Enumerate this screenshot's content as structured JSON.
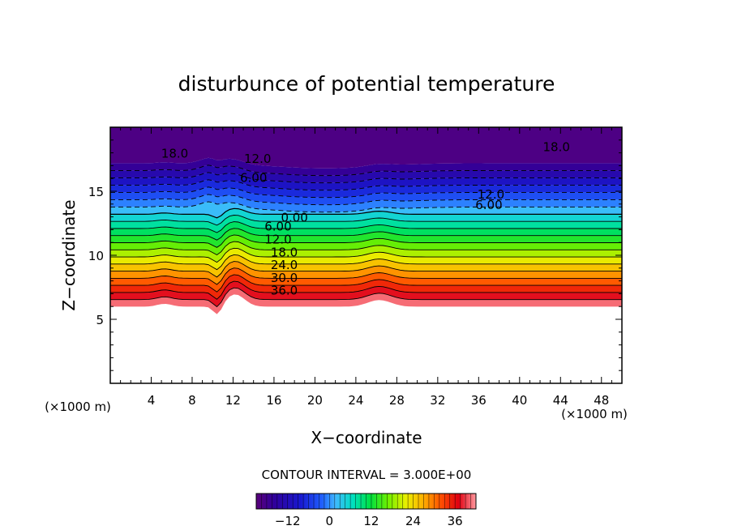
{
  "chart_data": {
    "type": "heatmap",
    "title": "disturbunce of potential temperature",
    "xlabel": "X−coordinate",
    "ylabel": "Z−coordinate",
    "x_unit_left": "(×1000 m)",
    "x_unit_right": "(×1000 m)",
    "xlim": [
      0,
      50
    ],
    "ylim": [
      0,
      20
    ],
    "x_ticks": [
      4,
      8,
      12,
      16,
      20,
      24,
      28,
      32,
      36,
      40,
      44,
      48
    ],
    "y_ticks": [
      5,
      10,
      15
    ],
    "contour_interval_text": "CONTOUR INTERVAL = 3.000E+00",
    "colorbar": {
      "min": -21,
      "max": 42,
      "ticks": [
        -12,
        0,
        12,
        24,
        36
      ],
      "tick_labels": [
        "−12",
        "0",
        "12",
        "24",
        "36"
      ]
    },
    "contour_labels": [
      {
        "text": "18.0",
        "x": 6.3,
        "z": 18.0
      },
      {
        "text": "18.0",
        "x": 43.6,
        "z": 18.5
      },
      {
        "text": "12.0",
        "x": 14.4,
        "z": 17.6
      },
      {
        "text": "6.00",
        "x": 14.0,
        "z": 16.1
      },
      {
        "text": "12.0",
        "x": 37.2,
        "z": 14.8
      },
      {
        "text": "6.00",
        "x": 37.0,
        "z": 14.0
      },
      {
        "text": "0.00",
        "x": 18.0,
        "z": 13.0
      },
      {
        "text": "6.00",
        "x": 16.4,
        "z": 12.3
      },
      {
        "text": "12.0",
        "x": 16.4,
        "z": 11.3
      },
      {
        "text": "18.0",
        "x": 17.0,
        "z": 10.3
      },
      {
        "text": "24.0",
        "x": 17.0,
        "z": 9.3
      },
      {
        "text": "30.0",
        "x": 17.0,
        "z": 8.3
      },
      {
        "text": "36.0",
        "x": 17.0,
        "z": 7.3
      }
    ]
  }
}
